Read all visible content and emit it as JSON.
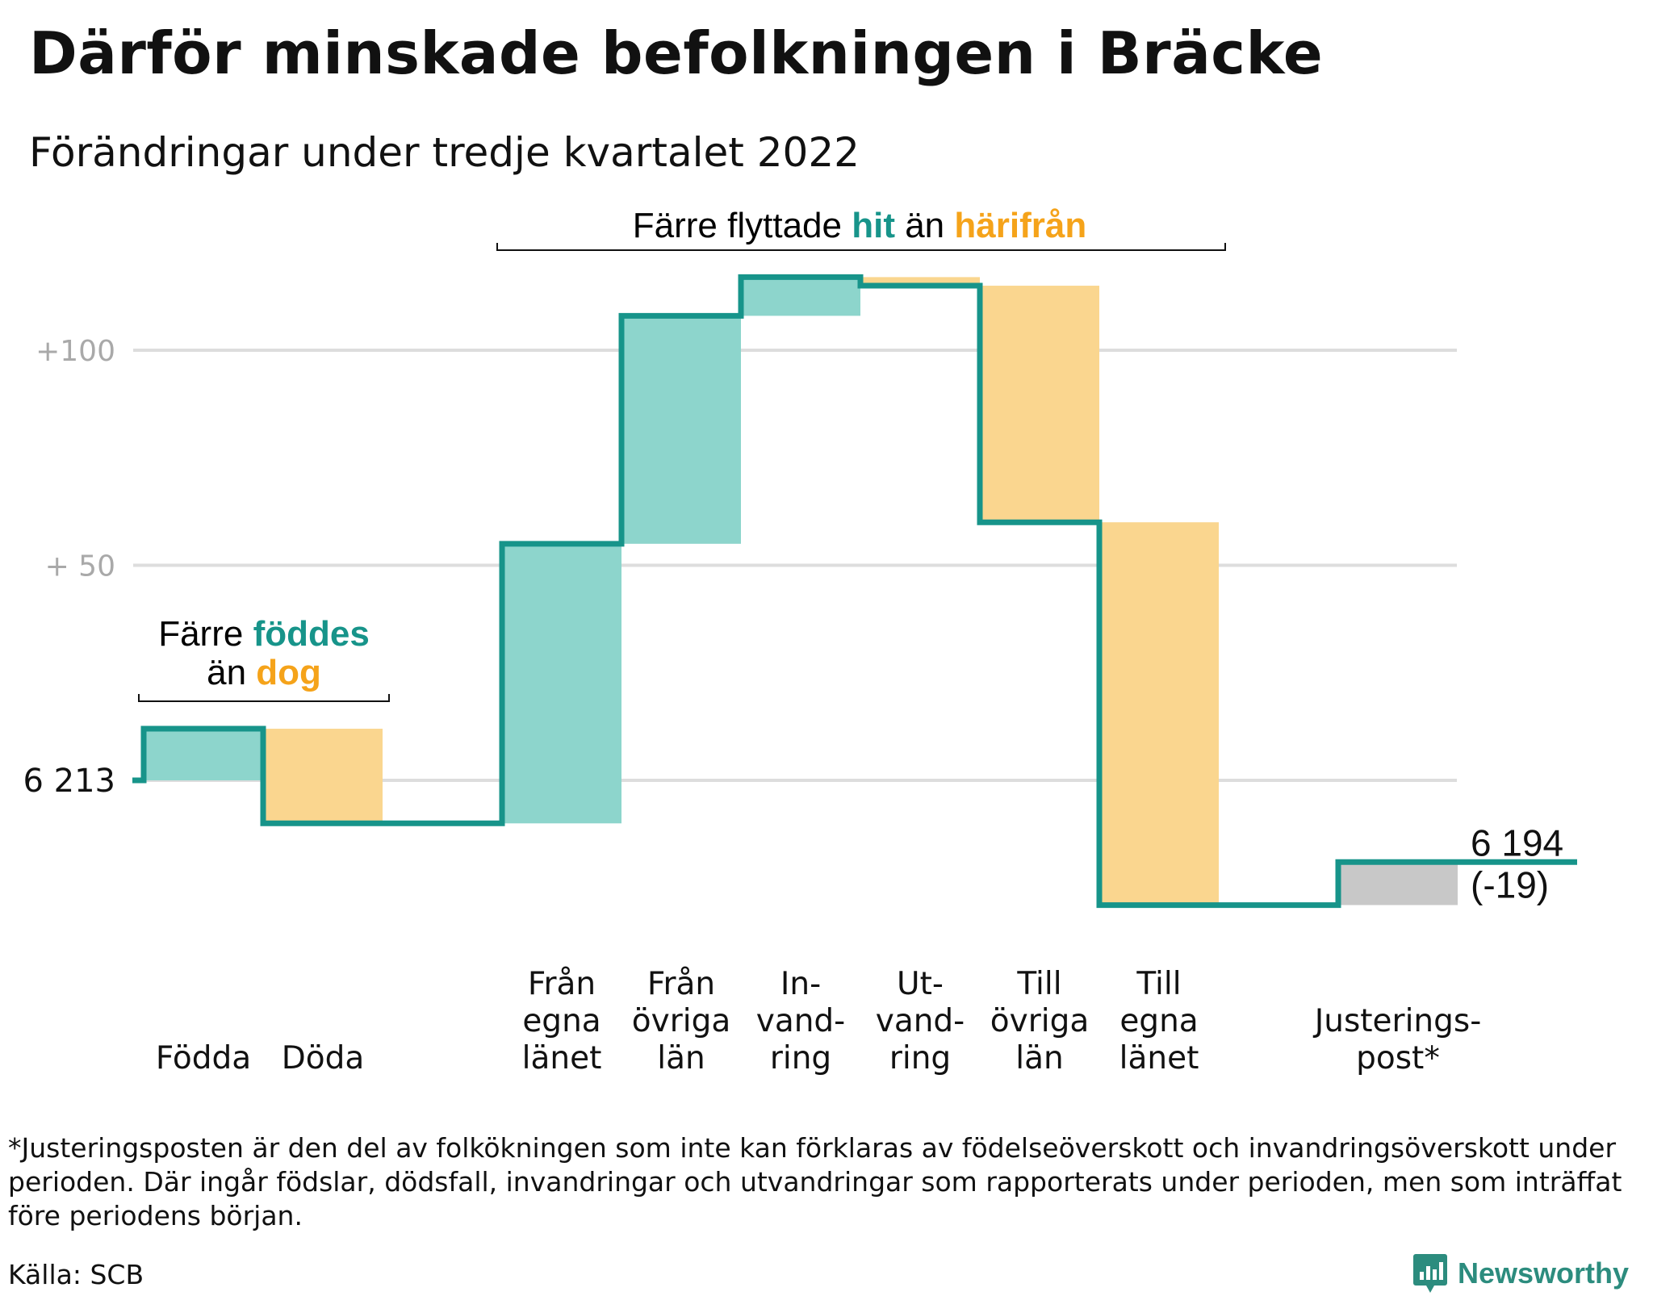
{
  "title": "Därför minskade befolkningen i Bräcke",
  "subtitle": "Förändringar under tredje kvartalet 2022",
  "annotations": {
    "births": {
      "line1": [
        "Färre ",
        "föddes"
      ],
      "line2": [
        "än ",
        "dog"
      ]
    },
    "migration": [
      "Färre flyttade ",
      "hit",
      " än ",
      "härifrån"
    ]
  },
  "chart_data": {
    "type": "waterfall",
    "title": "Därför minskade befolkningen i Bräcke",
    "subtitle": "Förändringar under tredje kvartalet 2022",
    "start": 6213,
    "end": 6194,
    "change": -19,
    "start_label": "6 213",
    "end_label_line1": "6 194",
    "end_label_line2": "(-19)",
    "y_reference_ticks": [
      {
        "offset": 100,
        "label": "+100"
      },
      {
        "offset": 50,
        "label": "+ 50"
      }
    ],
    "steps": [
      {
        "name": "Födda",
        "label_lines": [
          "Födda"
        ],
        "value": 12,
        "kind": "in"
      },
      {
        "name": "Döda",
        "label_lines": [
          "Döda"
        ],
        "value": -22,
        "kind": "out"
      },
      {
        "name": "gap1",
        "label_lines": [],
        "value": 0,
        "kind": "gap"
      },
      {
        "name": "Från egna länet",
        "label_lines": [
          "Från",
          "egna",
          "länet"
        ],
        "value": 65,
        "kind": "in"
      },
      {
        "name": "Från övriga län",
        "label_lines": [
          "Från",
          "övriga",
          "län"
        ],
        "value": 53,
        "kind": "in"
      },
      {
        "name": "Invandring",
        "label_lines": [
          "In-",
          "vand-",
          "ring"
        ],
        "value": 9,
        "kind": "in"
      },
      {
        "name": "Utvandring",
        "label_lines": [
          "Ut-",
          "vand-",
          "ring"
        ],
        "value": -2,
        "kind": "out"
      },
      {
        "name": "Till övriga län",
        "label_lines": [
          "Till",
          "övriga",
          "län"
        ],
        "value": -55,
        "kind": "out"
      },
      {
        "name": "Till egna länet",
        "label_lines": [
          "Till",
          "egna",
          "länet"
        ],
        "value": -89,
        "kind": "out"
      },
      {
        "name": "gap2",
        "label_lines": [],
        "value": 0,
        "kind": "gap"
      },
      {
        "name": "Justeringspost",
        "label_lines": [
          "Justerings-",
          "post*"
        ],
        "value": 10,
        "kind": "adjust"
      }
    ],
    "colors": {
      "in": "#8dd5cc",
      "out": "#fad68f",
      "adjust": "#c8c8c8",
      "line": "#17948a",
      "grid": "#dddddd"
    }
  },
  "footnote": "*Justeringsposten är den del av folkökningen som inte kan förklaras av födelseöverskott och invandringsöverskott under perioden. Där ingår födslar, dödsfall, invandringar och utvandringar som rapporterats under perioden, men som inträffat före periodens början.",
  "source": "Källa: SCB",
  "brand": "Newsworthy"
}
